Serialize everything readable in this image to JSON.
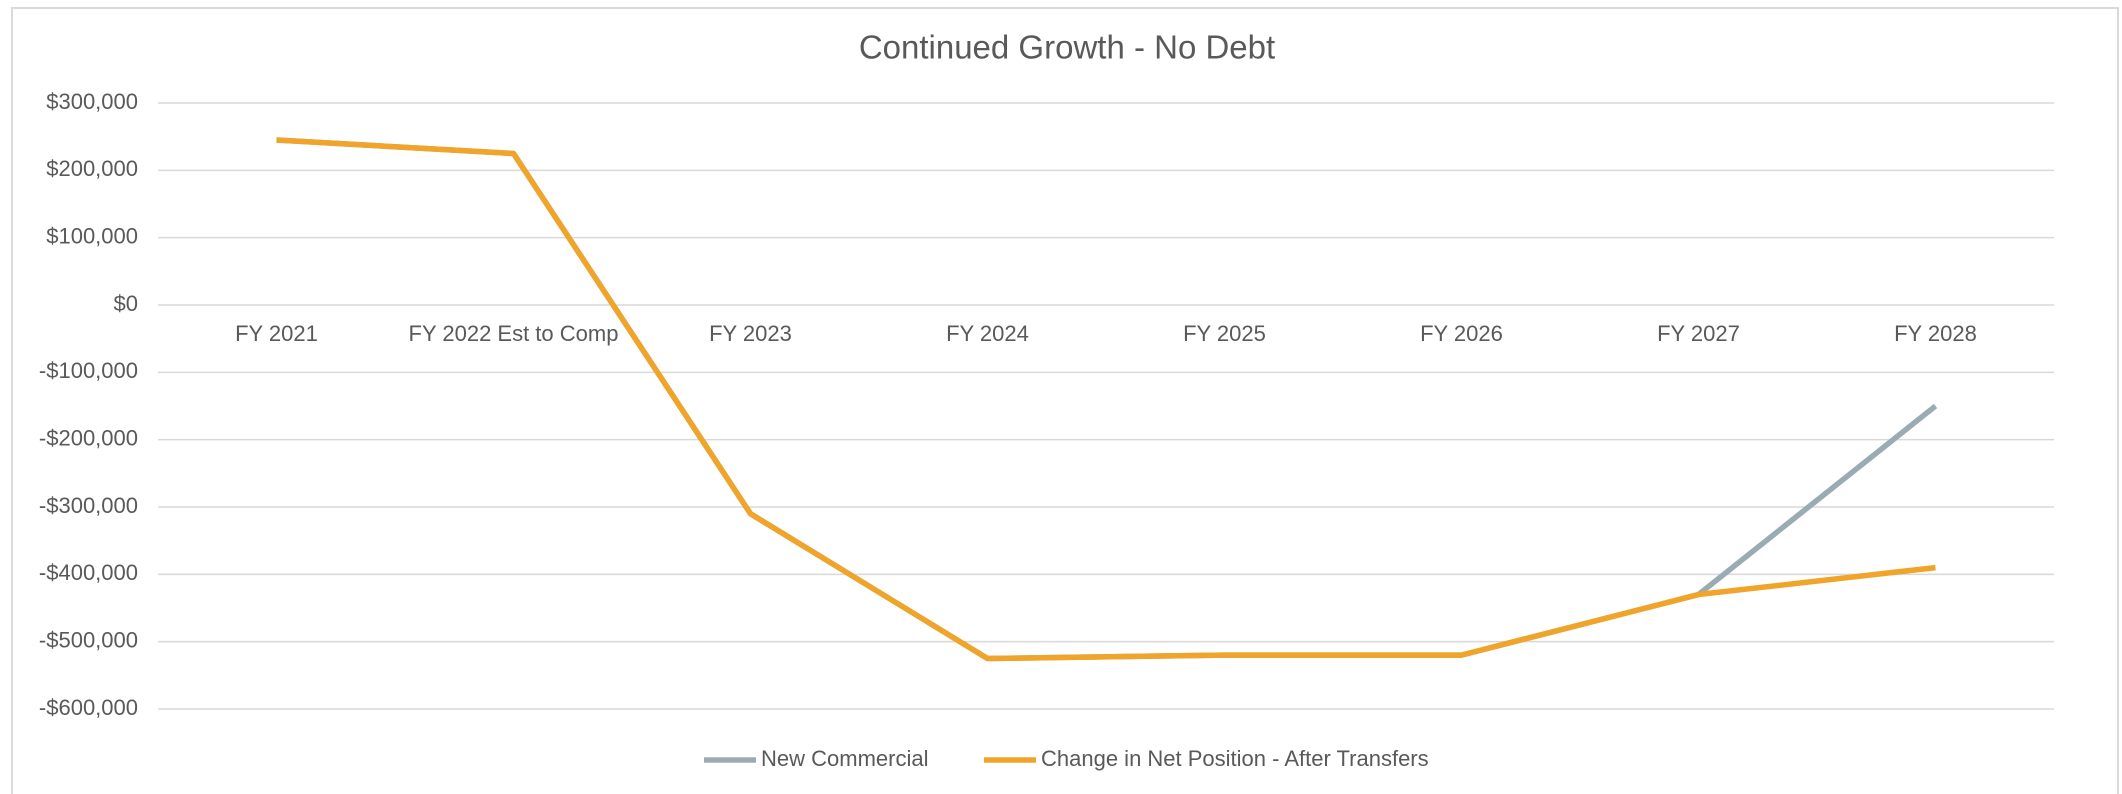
{
  "chart_data": {
    "type": "line",
    "title": "Continued Growth - No Debt",
    "categories": [
      "FY 2021",
      "FY 2022 Est to Comp",
      "FY 2023",
      "FY 2024",
      "FY 2025",
      "FY 2026",
      "FY 2027",
      "FY 2028"
    ],
    "series": [
      {
        "name": "New Commercial",
        "color": "#9aabb3",
        "values": [
          245000,
          225000,
          -310000,
          -525000,
          -520000,
          -520000,
          -430000,
          -150000
        ]
      },
      {
        "name": "Change in Net Position - After Transfers",
        "color": "#f0a42a",
        "values": [
          245000,
          225000,
          -310000,
          -525000,
          -520000,
          -520000,
          -430000,
          -390000
        ]
      }
    ],
    "ylim": [
      -600000,
      300000
    ],
    "yticks": [
      {
        "value": -600000,
        "label": "-$600,000"
      },
      {
        "value": -500000,
        "label": "-$500,000"
      },
      {
        "value": -400000,
        "label": "-$400,000"
      },
      {
        "value": -300000,
        "label": "-$300,000"
      },
      {
        "value": -200000,
        "label": "-$200,000"
      },
      {
        "value": -100000,
        "label": "-$100,000"
      },
      {
        "value": 0,
        "label": "$0"
      },
      {
        "value": 100000,
        "label": "$100,000"
      },
      {
        "value": 200000,
        "label": "$200,000"
      },
      {
        "value": 300000,
        "label": "$300,000"
      }
    ],
    "grid": true,
    "legend": "bottom"
  }
}
